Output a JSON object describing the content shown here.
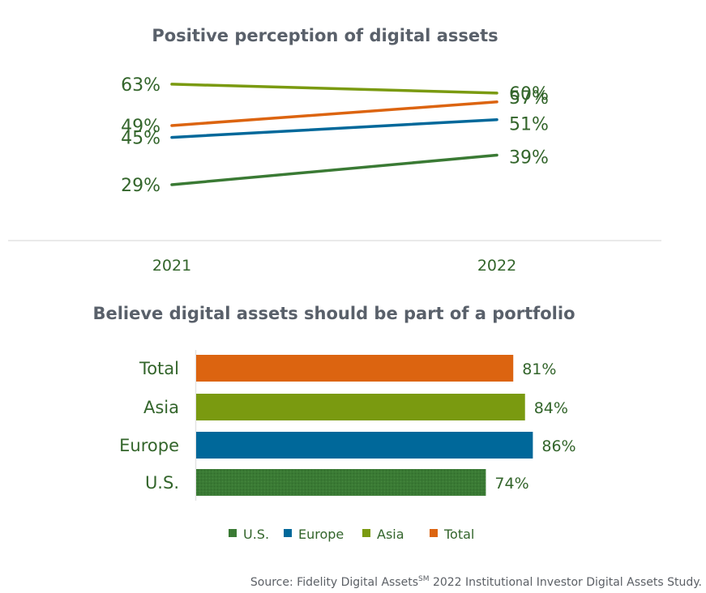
{
  "colors": {
    "us": "#3a7a34",
    "europe": "#00689a",
    "asia": "#7a9a10",
    "total": "#dc6410",
    "text_green": "#33652b",
    "title_gray": "#59606a",
    "rule": "#e3e3e3"
  },
  "chart_data": [
    {
      "type": "line",
      "title": "Positive perception of digital assets",
      "x": [
        "2021",
        "2022"
      ],
      "series": [
        {
          "key": "asia",
          "name": "Asia",
          "values": [
            63,
            60
          ],
          "labels": [
            "63%",
            "60%"
          ]
        },
        {
          "key": "total",
          "name": "Total",
          "values": [
            49,
            57
          ],
          "labels": [
            "49%",
            "57%"
          ]
        },
        {
          "key": "europe",
          "name": "Europe",
          "values": [
            45,
            51
          ],
          "labels": [
            "45%",
            "51%"
          ]
        },
        {
          "key": "us",
          "name": "U.S.",
          "values": [
            29,
            39
          ],
          "labels": [
            "29%",
            "39%"
          ]
        }
      ],
      "grid": false
    },
    {
      "type": "bar",
      "orientation": "horizontal",
      "title": "Believe digital assets should be part of a portfolio",
      "categories": [
        "Total",
        "Asia",
        "Europe",
        "U.S."
      ],
      "keys": [
        "total",
        "asia",
        "europe",
        "us"
      ],
      "values": [
        81,
        84,
        86,
        74
      ],
      "labels": [
        "81%",
        "84%",
        "86%",
        "74%"
      ],
      "xlim": [
        0,
        100
      ],
      "grid": false
    }
  ],
  "legend": {
    "placement": "bottom",
    "items": [
      {
        "key": "us",
        "label": "U.S."
      },
      {
        "key": "europe",
        "label": "Europe"
      },
      {
        "key": "asia",
        "label": "Asia"
      },
      {
        "key": "total",
        "label": "Total"
      }
    ]
  },
  "source": {
    "prefix": "Source: Fidelity Digital Assets",
    "superscript": "SM",
    "suffix": " 2022 Institutional Investor Digital Assets Study."
  }
}
